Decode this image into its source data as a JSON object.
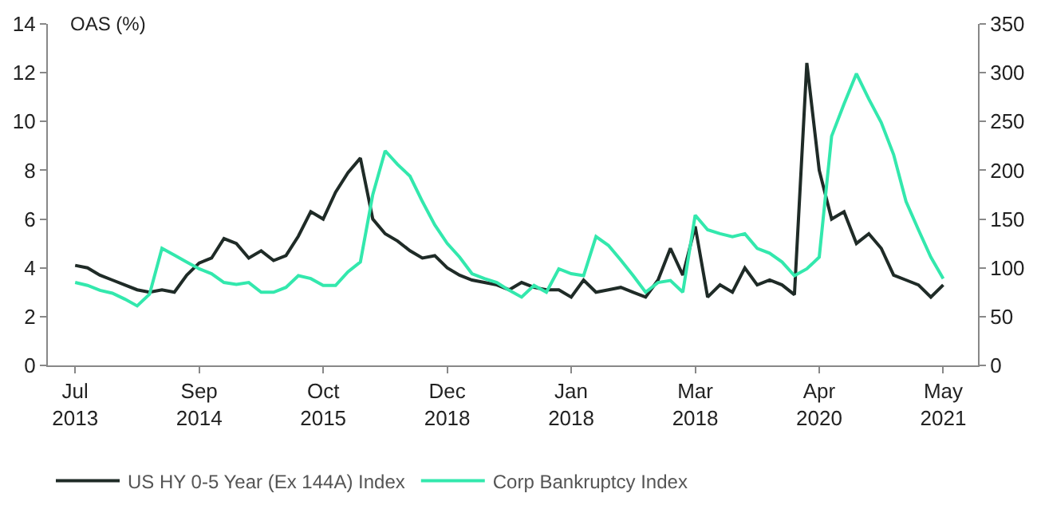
{
  "chart_data": {
    "type": "line",
    "ylabel": "OAS (%)",
    "categories": [
      "Jul\n2013",
      null,
      null,
      null,
      null,
      null,
      null,
      null,
      null,
      null,
      "Sep\n2014",
      null,
      null,
      null,
      null,
      null,
      null,
      null,
      null,
      null,
      "Oct\n2015",
      null,
      null,
      null,
      null,
      null,
      null,
      null,
      null,
      null,
      "Dec\n2018",
      null,
      null,
      null,
      null,
      null,
      null,
      null,
      null,
      null,
      "Jan\n2018",
      null,
      null,
      null,
      null,
      null,
      null,
      null,
      null,
      null,
      "Mar\n2018",
      null,
      null,
      null,
      null,
      null,
      null,
      null,
      null,
      null,
      "Apr\n2020",
      null,
      null,
      null,
      null,
      null,
      null,
      null,
      null,
      null,
      "May\n2021"
    ],
    "series": [
      {
        "name": "US HY 0-5 Year (Ex 144A) Index",
        "color": "#1f2b27",
        "values": [
          4.1,
          4.0,
          3.7,
          3.5,
          3.3,
          3.1,
          3.0,
          3.1,
          3.0,
          3.7,
          4.2,
          4.4,
          5.2,
          5.0,
          4.4,
          4.7,
          4.3,
          4.5,
          5.3,
          6.3,
          6.0,
          7.1,
          7.9,
          8.5,
          6.0,
          5.4,
          5.1,
          4.7,
          4.4,
          4.5,
          4.0,
          3.7,
          3.5,
          3.4,
          3.3,
          3.1,
          3.4,
          3.2,
          3.1,
          3.1,
          2.8,
          3.5,
          3.0,
          3.1,
          3.2,
          3.0,
          2.8,
          3.5,
          4.8,
          3.7,
          5.7,
          2.8,
          3.3,
          3.0,
          4.0,
          3.3,
          3.5,
          3.3,
          2.9,
          12.4,
          8.0,
          6.0,
          6.3,
          5.0,
          5.4,
          4.8,
          3.7,
          3.5,
          3.3,
          2.8,
          3.3
        ]
      },
      {
        "name": "Corp Bankruptcy Index",
        "color": "#33e8ad",
        "axis": "y2",
        "values": [
          85,
          82,
          77,
          74,
          68,
          61,
          73,
          120,
          113,
          106,
          99,
          94,
          85,
          83,
          85,
          75,
          75,
          80,
          92,
          89,
          82,
          82,
          96,
          106,
          175,
          220,
          206,
          194,
          168,
          144,
          125,
          111,
          94,
          89,
          85,
          77,
          70,
          82,
          75,
          99,
          94,
          92,
          132,
          123,
          108,
          92,
          75,
          85,
          87,
          75,
          154,
          139,
          135,
          132,
          135,
          120,
          115,
          106,
          92,
          99,
          111,
          235,
          268,
          299,
          273,
          249,
          216,
          168,
          139,
          111,
          89
        ]
      }
    ],
    "ylim": [
      0,
      14
    ],
    "yticks": [
      0,
      2,
      4,
      6,
      8,
      10,
      12,
      14
    ],
    "y2lim": [
      0,
      350
    ],
    "y2ticks": [
      0,
      50,
      100,
      150,
      200,
      250,
      300,
      350
    ],
    "legend": "bottom",
    "marker": "none",
    "line_style": "solid"
  }
}
